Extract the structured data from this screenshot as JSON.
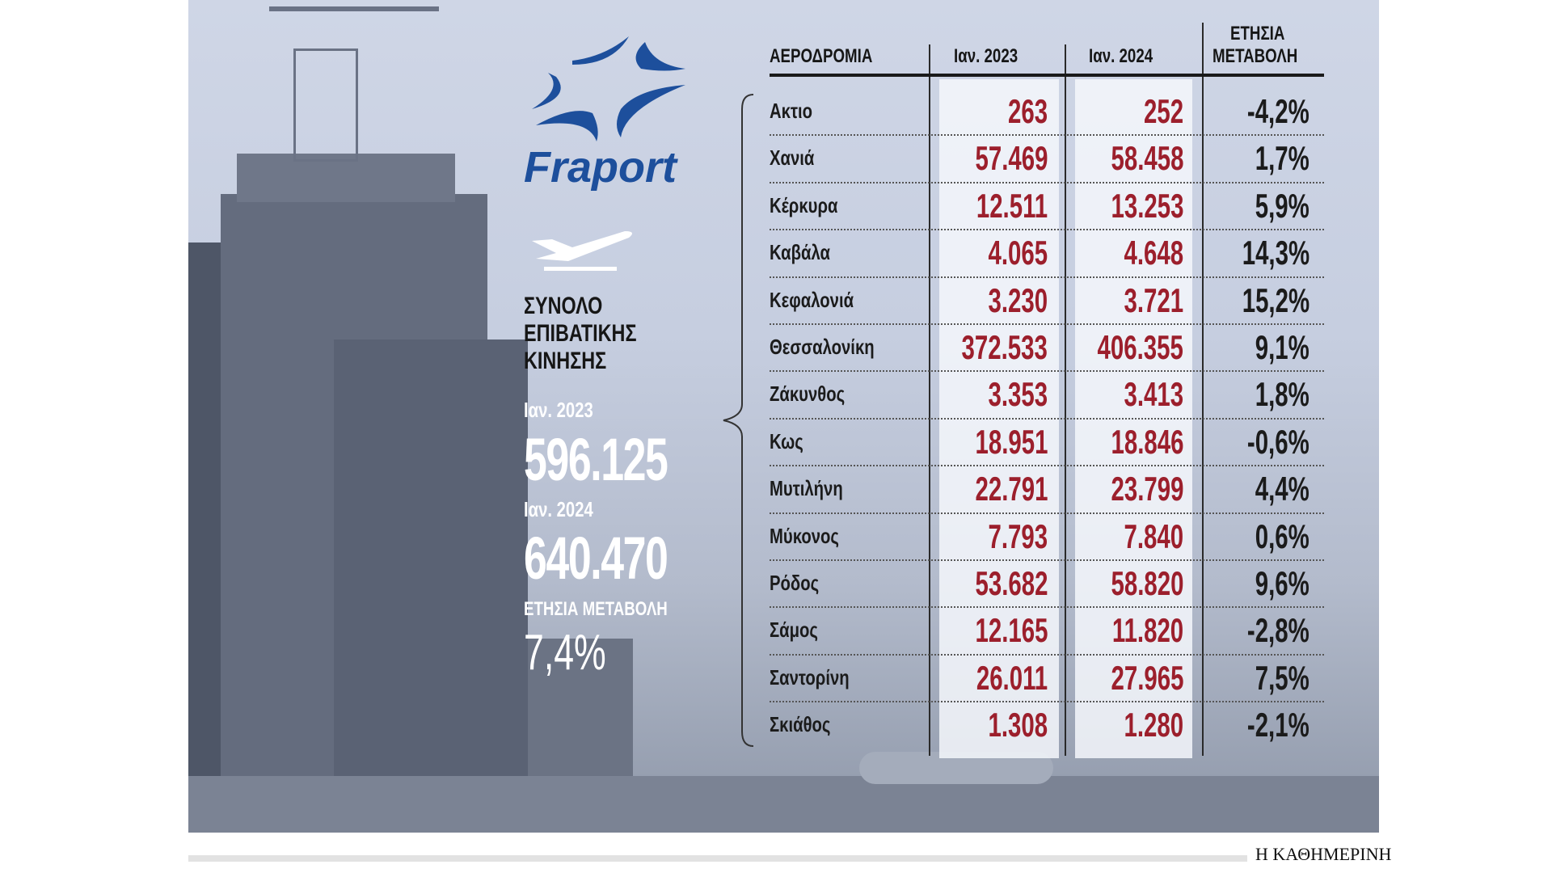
{
  "logo": {
    "brand": "Fraport"
  },
  "summary": {
    "title_lines": [
      "ΣΥΝΟΛΟ",
      "ΕΠΙΒΑΤΙΚΗΣ",
      "ΚΙΝΗΣΗΣ"
    ],
    "label_2023": "Ιαν. 2023",
    "total_2023": "596.125",
    "label_2024": "Ιαν. 2024",
    "total_2024": "640.470",
    "change_label": "ΕΤΗΣΙΑ ΜΕΤΑΒΟΛΗ",
    "change_value": "7,4%"
  },
  "table": {
    "headers": [
      "ΑΕΡΟΔΡΟΜΙΑ",
      "Ιαν. 2023",
      "Ιαν. 2024",
      "ΕΤΗΣΙΑ",
      "ΜΕΤΑΒΟΛΗ"
    ],
    "rows": [
      [
        "Ακτιο",
        "263",
        "252",
        "-4,2%"
      ],
      [
        "Χανιά",
        "57.469",
        "58.458",
        "1,7%"
      ],
      [
        "Κέρκυρα",
        "12.511",
        "13.253",
        "5,9%"
      ],
      [
        "Καβάλα",
        "4.065",
        "4.648",
        "14,3%"
      ],
      [
        "Κεφαλονιά",
        "3.230",
        "3.721",
        "15,2%"
      ],
      [
        "Θεσσαλονίκη",
        "372.533",
        "406.355",
        "9,1%"
      ],
      [
        "Ζάκυνθος",
        "3.353",
        "3.413",
        "1,8%"
      ],
      [
        "Κως",
        "18.951",
        "18.846",
        "-0,6%"
      ],
      [
        "Μυτιλήνη",
        "22.791",
        "23.799",
        "4,4%"
      ],
      [
        "Μύκονος",
        "7.793",
        "7.840",
        "0,6%"
      ],
      [
        "Ρόδος",
        "53.682",
        "58.820",
        "9,6%"
      ],
      [
        "Σάμος",
        "12.165",
        "11.820",
        "-2,8%"
      ],
      [
        "Σαντορίνη",
        "26.011",
        "27.965",
        "7,5%"
      ],
      [
        "Σκιάθος",
        "1.308",
        "1.280",
        "-2,1%"
      ]
    ]
  },
  "footer": {
    "publisher": "Η ΚΑΘΗΜΕΡΙΝΗ"
  },
  "colors": {
    "number_red": "#9c1f2c",
    "logo_blue": "#1d4f9c"
  }
}
